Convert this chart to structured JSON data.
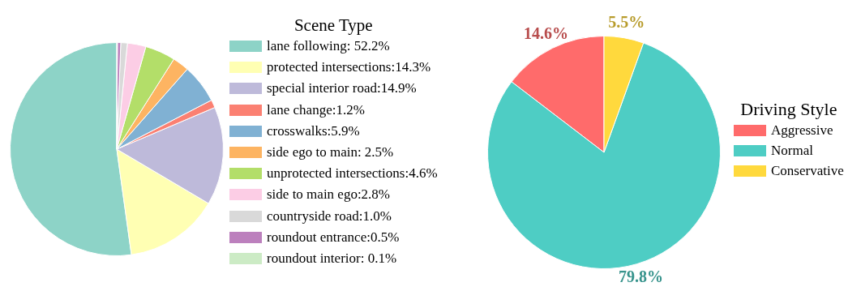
{
  "chart_data": [
    {
      "type": "pie",
      "legend_title": "Scene Type",
      "legend": "right",
      "categories": [
        "lane following: 52.2%",
        "protected intersections:14.3%",
        "special interior road:14.9%",
        "lane change:1.2%",
        "crosswalks:5.9%",
        "side ego to main: 2.5%",
        "unprotected intersections:4.6%",
        "side to main ego:2.8%",
        "countryside road:1.0%",
        "roundout entrance:0.5%",
        "roundout interior: 0.1%"
      ],
      "values": [
        52.2,
        14.3,
        14.9,
        1.2,
        5.9,
        2.5,
        4.6,
        2.8,
        1.0,
        0.5,
        0.1
      ],
      "colors": [
        "#8dd3c7",
        "#ffffb3",
        "#bebada",
        "#fb8072",
        "#80b1d3",
        "#fdb462",
        "#b3de69",
        "#fccde5",
        "#d9d9d9",
        "#bc80bd",
        "#ccebc5"
      ]
    },
    {
      "type": "pie",
      "legend_title": "Driving Style",
      "legend": "right",
      "categories": [
        "Aggressive",
        "Normal",
        "Conservative"
      ],
      "values": [
        14.6,
        79.8,
        5.5
      ],
      "colors": [
        "#ff6b6b",
        "#4ecdc4",
        "#ffd93d"
      ],
      "value_labels": [
        "14.6%",
        "79.8%",
        "5.5%"
      ]
    }
  ]
}
